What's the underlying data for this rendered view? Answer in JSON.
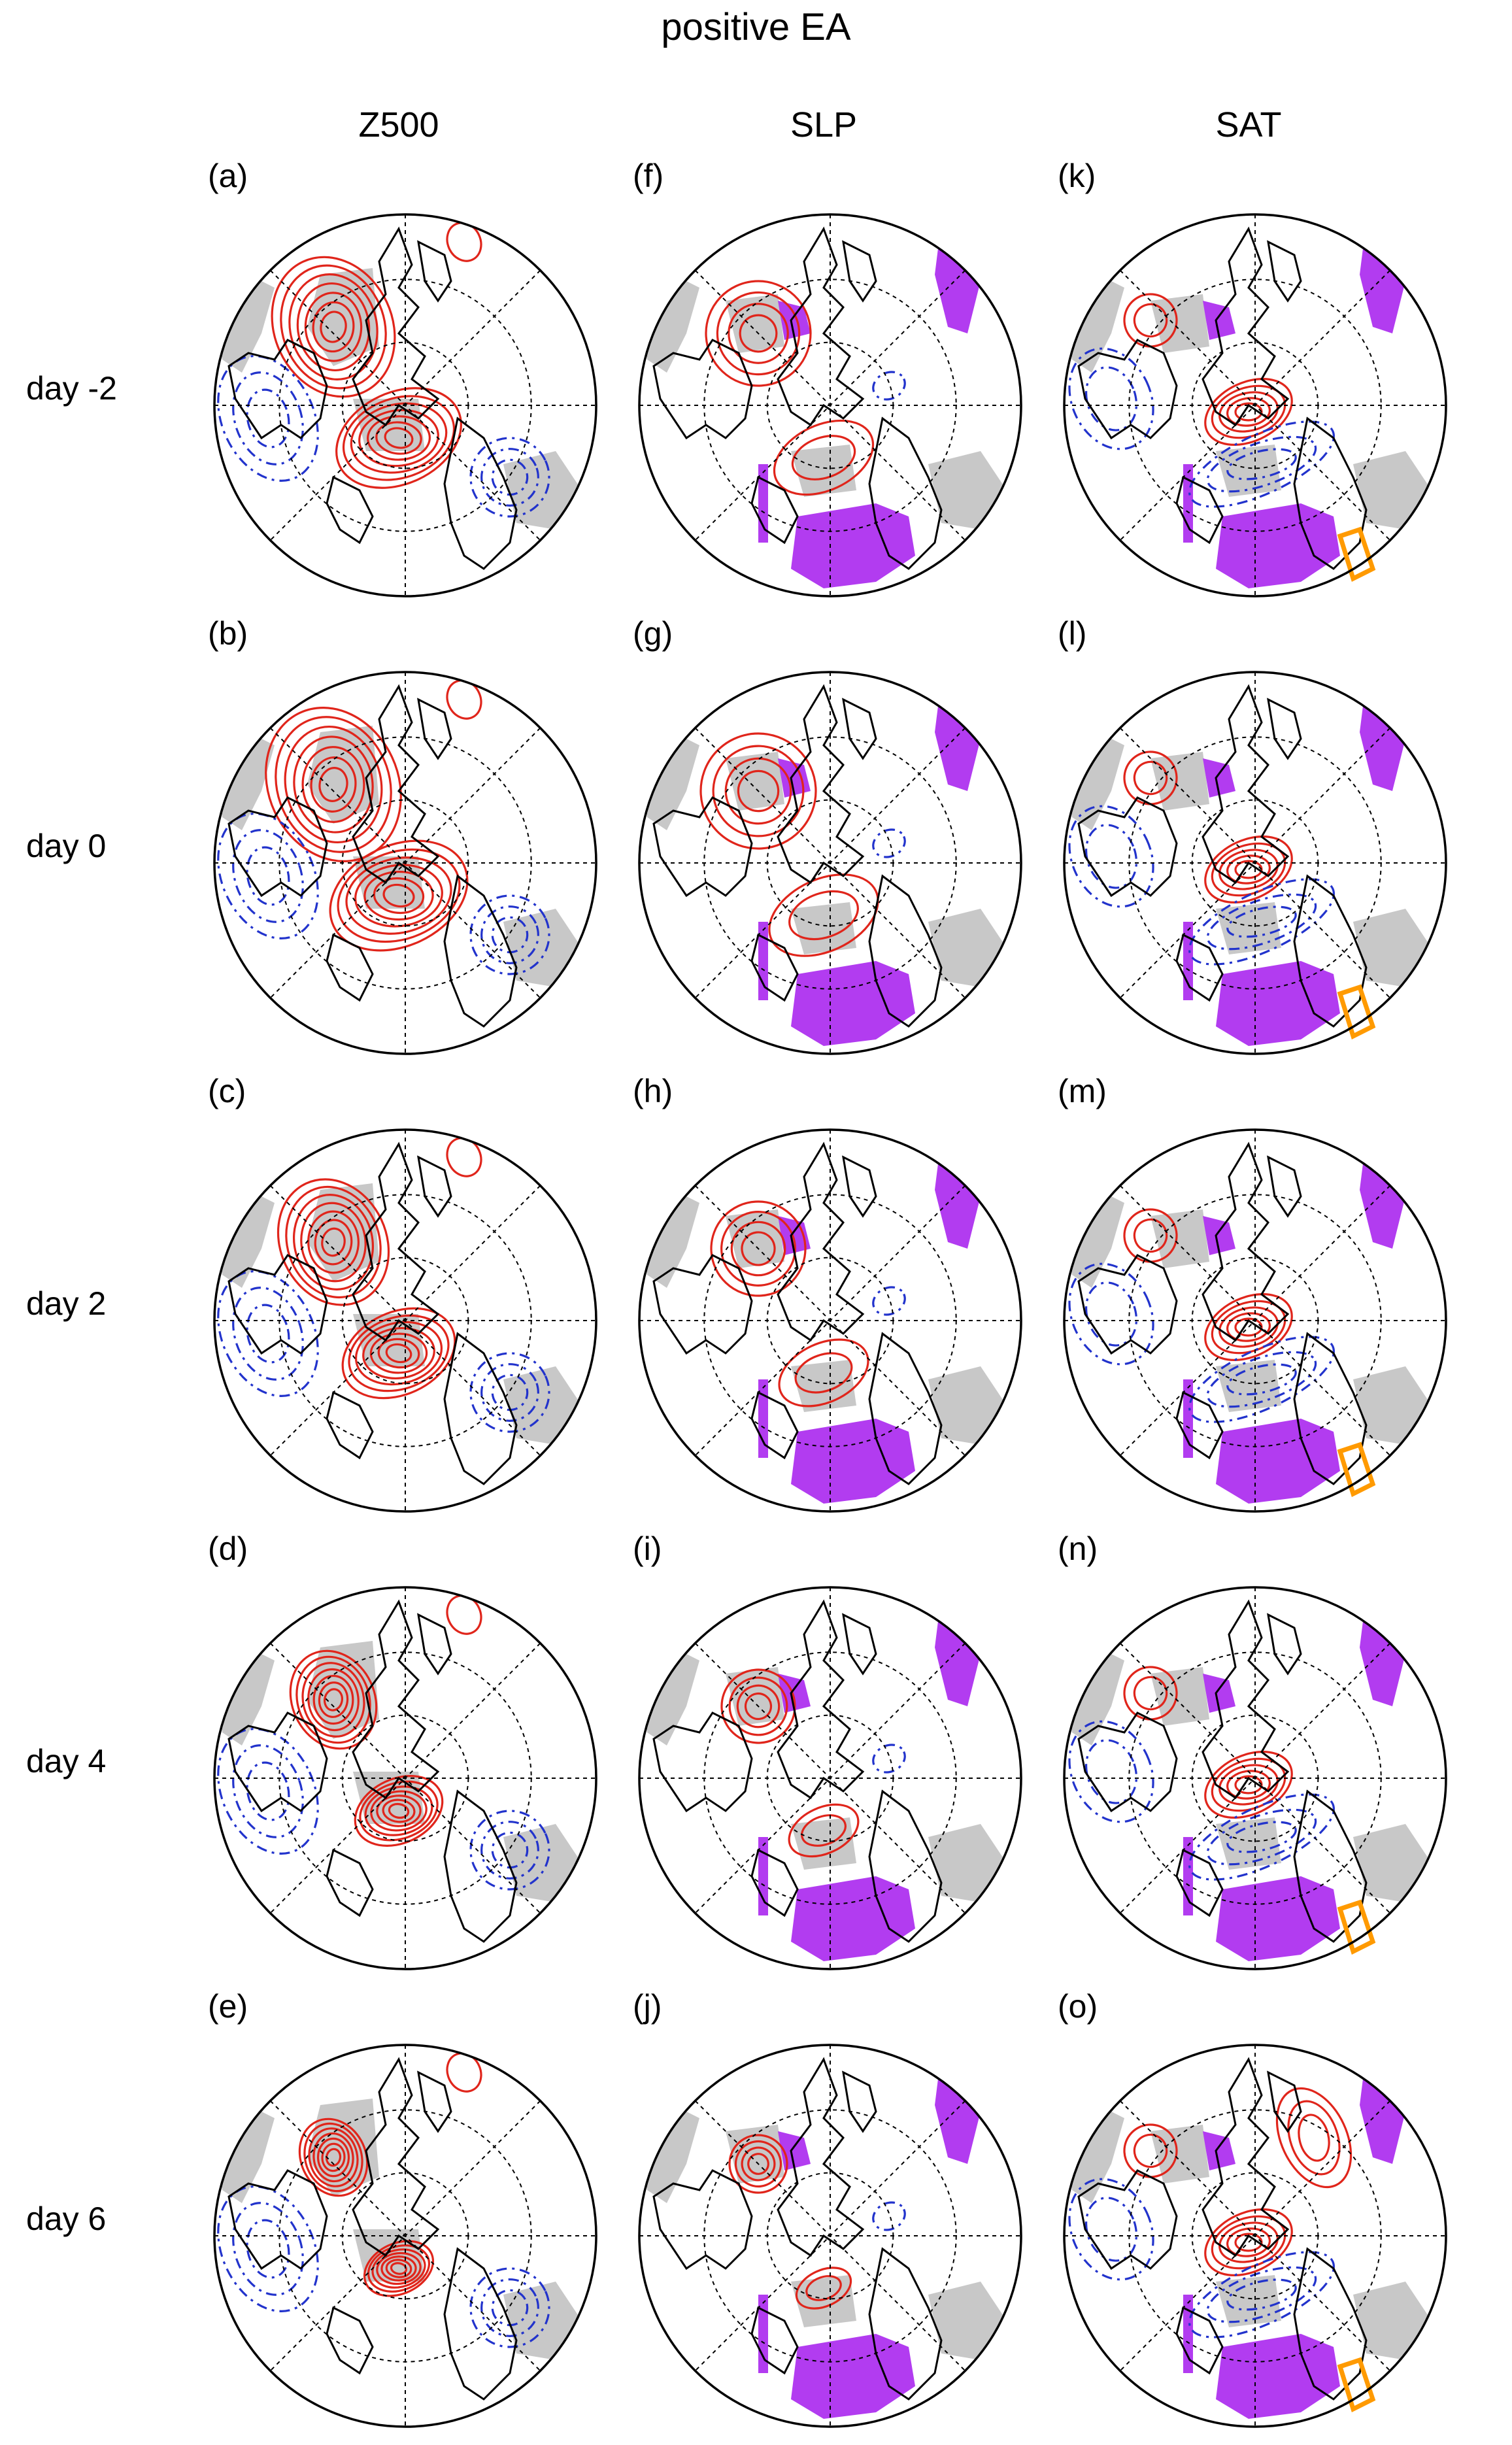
{
  "title": "positive EA",
  "columns": [
    "Z500",
    "SLP",
    "SAT"
  ],
  "rows": [
    "day -2",
    "day 0",
    "day 2",
    "day 4",
    "day 6"
  ],
  "panel_labels": [
    [
      "(a)",
      "(f)",
      "(k)"
    ],
    [
      "(b)",
      "(g)",
      "(l)"
    ],
    [
      "(c)",
      "(h)",
      "(m)"
    ],
    [
      "(d)",
      "(i)",
      "(n)"
    ],
    [
      "(e)",
      "(j)",
      "(o)"
    ]
  ],
  "colors": {
    "positive_contour": "#e0251b",
    "negative_contour": "#2233cc",
    "significance_shading": "#c8c8c8",
    "purple_region": "#b23cf0",
    "orange_box": "#ff9a00"
  }
}
